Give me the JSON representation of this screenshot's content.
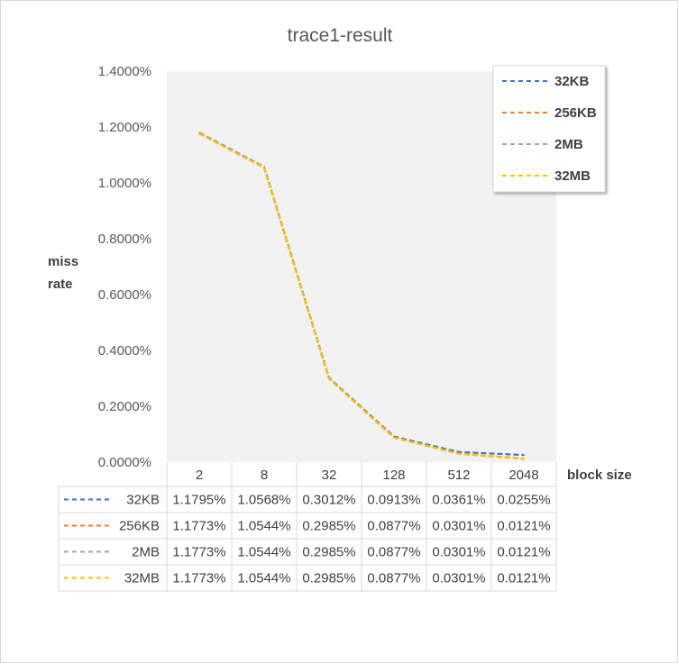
{
  "chart_data": {
    "type": "line",
    "title": "trace1-result",
    "xlabel": "block size",
    "ylabel": "miss rate",
    "categories": [
      "2",
      "8",
      "32",
      "128",
      "512",
      "2048"
    ],
    "ylim": [
      0,
      0.014
    ],
    "yticks": [
      0,
      0.002,
      0.004,
      0.006,
      0.008,
      0.01,
      0.012,
      0.014
    ],
    "ytick_labels": [
      "0.0000%",
      "0.2000%",
      "0.4000%",
      "0.6000%",
      "0.8000%",
      "1.0000%",
      "1.2000%",
      "1.4000%"
    ],
    "grid": false,
    "legend_position": "top-right",
    "series": [
      {
        "name": "32KB",
        "color": "#4472C4",
        "values": [
          0.011795,
          0.010568,
          0.003012,
          0.000913,
          0.000361,
          0.000255
        ],
        "labels": [
          "1.1795%",
          "1.0568%",
          "0.3012%",
          "0.0913%",
          "0.0361%",
          "0.0255%"
        ]
      },
      {
        "name": "256KB",
        "color": "#ED7D31",
        "values": [
          0.011773,
          0.010544,
          0.002985,
          0.000877,
          0.000301,
          0.000121
        ],
        "labels": [
          "1.1773%",
          "1.0544%",
          "0.2985%",
          "0.0877%",
          "0.0301%",
          "0.0121%"
        ]
      },
      {
        "name": "2MB",
        "color": "#A5A5A5",
        "values": [
          0.011773,
          0.010544,
          0.002985,
          0.000877,
          0.000301,
          0.000121
        ],
        "labels": [
          "1.1773%",
          "1.0544%",
          "0.2985%",
          "0.0877%",
          "0.0301%",
          "0.0121%"
        ]
      },
      {
        "name": "32MB",
        "color": "#FFC000",
        "values": [
          0.011773,
          0.010544,
          0.002985,
          0.000877,
          0.000301,
          0.000121
        ],
        "labels": [
          "1.1773%",
          "1.0544%",
          "0.2985%",
          "0.0877%",
          "0.0301%",
          "0.0121%"
        ]
      }
    ]
  }
}
